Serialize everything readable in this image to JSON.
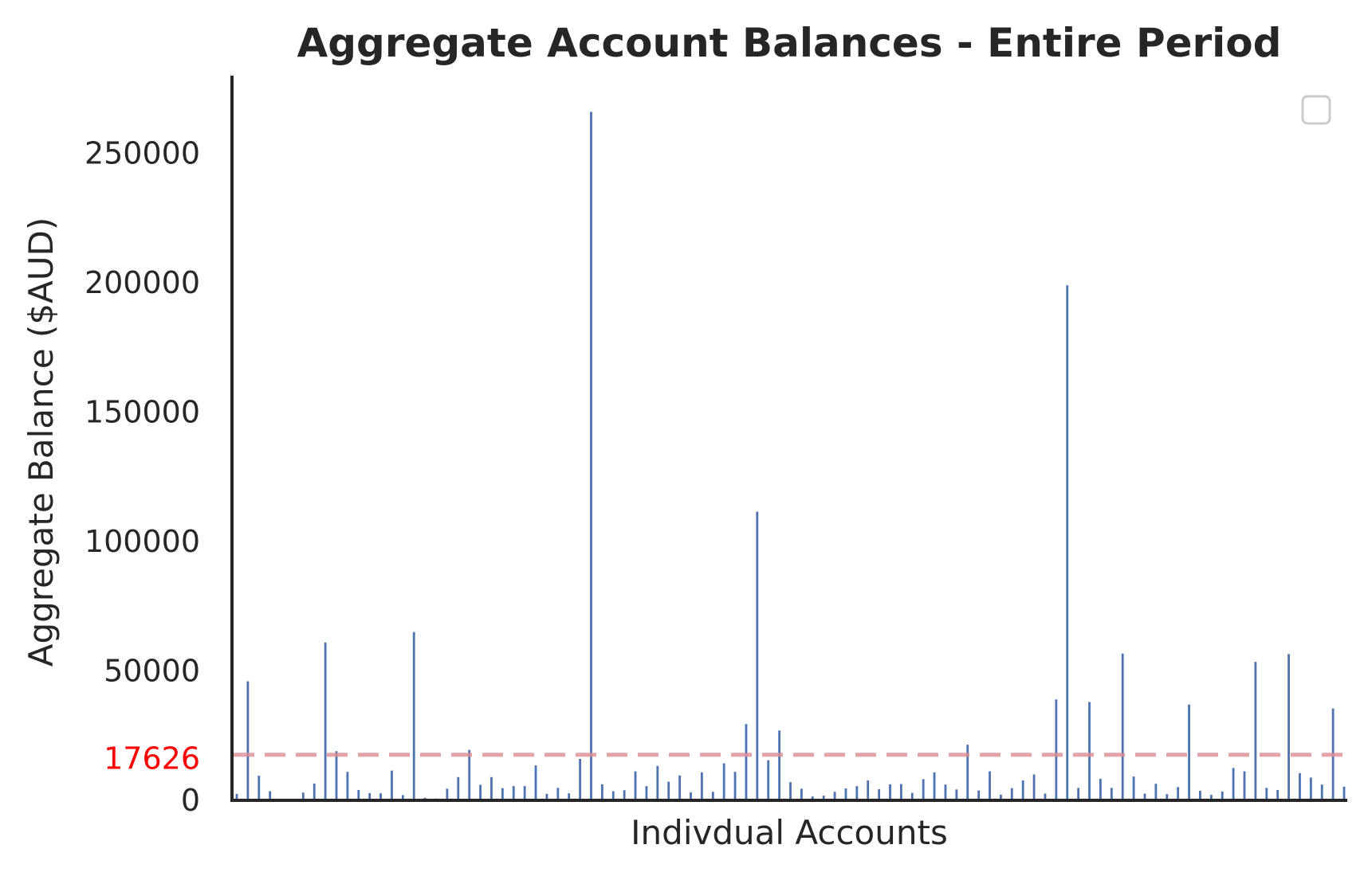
{
  "chart_data": {
    "type": "bar",
    "title": "Aggregate Account Balances - Entire Period",
    "xlabel": "Indivdual Accounts",
    "ylabel": "Aggregate Balance ($AUD)",
    "ylim": [
      0,
      280000
    ],
    "yticks": [
      0,
      50000,
      100000,
      150000,
      200000,
      250000
    ],
    "bar_color": "#4c72b0",
    "legend": {
      "position": "top-right",
      "entries": []
    },
    "reference_line": {
      "value": 17626,
      "label": "17626",
      "color": "#dd8d93",
      "label_color": "#ff0000",
      "style": "dashed"
    },
    "values": [
      2500,
      46000,
      9500,
      3500,
      0,
      0,
      3000,
      6500,
      61000,
      19000,
      11000,
      4000,
      2800,
      2700,
      11500,
      2000,
      65000,
      1000,
      700,
      4500,
      9000,
      19500,
      6000,
      9000,
      4700,
      5500,
      5500,
      13500,
      2500,
      4800,
      2700,
      16000,
      266000,
      6200,
      3500,
      3900,
      11200,
      5500,
      13300,
      7200,
      9600,
      3100,
      10800,
      3300,
      14300,
      11000,
      29500,
      111500,
      15500,
      27000,
      7000,
      4500,
      1500,
      1800,
      3300,
      4600,
      5500,
      7700,
      4300,
      6200,
      6300,
      2900,
      8200,
      10800,
      6100,
      4200,
      21500,
      3800,
      11200,
      2200,
      4700,
      7700,
      10000,
      2600,
      39000,
      199000,
      4800,
      38000,
      8300,
      4800,
      56700,
      9200,
      2600,
      6400,
      2400,
      5100,
      37000,
      3700,
      2100,
      3400,
      12500,
      11200,
      53500,
      4800,
      4000,
      56500,
      10500,
      8800,
      6100,
      35500,
      5300
    ]
  }
}
